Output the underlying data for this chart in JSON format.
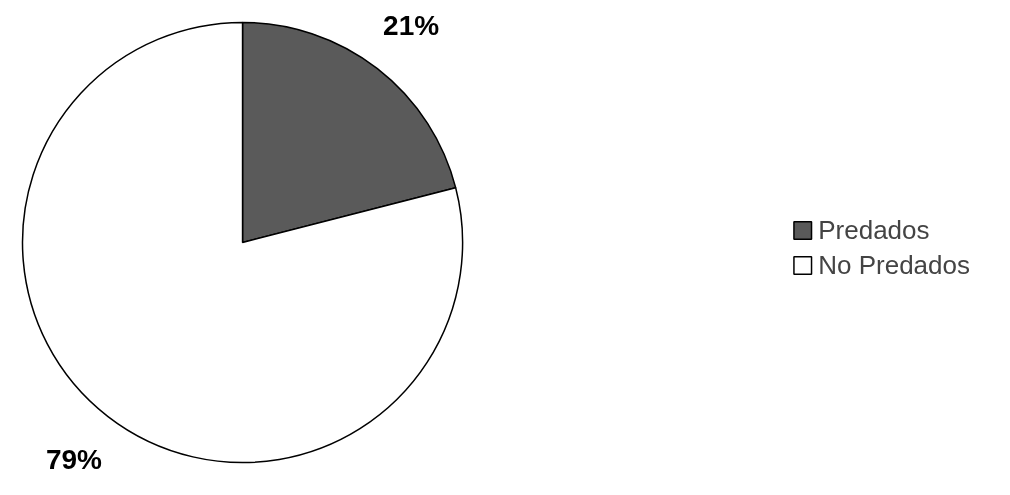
{
  "chart_data": {
    "type": "pie",
    "categories": [
      "Predados",
      "No Predados"
    ],
    "values": [
      21,
      79
    ],
    "colors": [
      "#5a5a5a",
      "#ffffff"
    ],
    "value_labels": [
      "21%",
      "79%"
    ],
    "legend": "right"
  }
}
